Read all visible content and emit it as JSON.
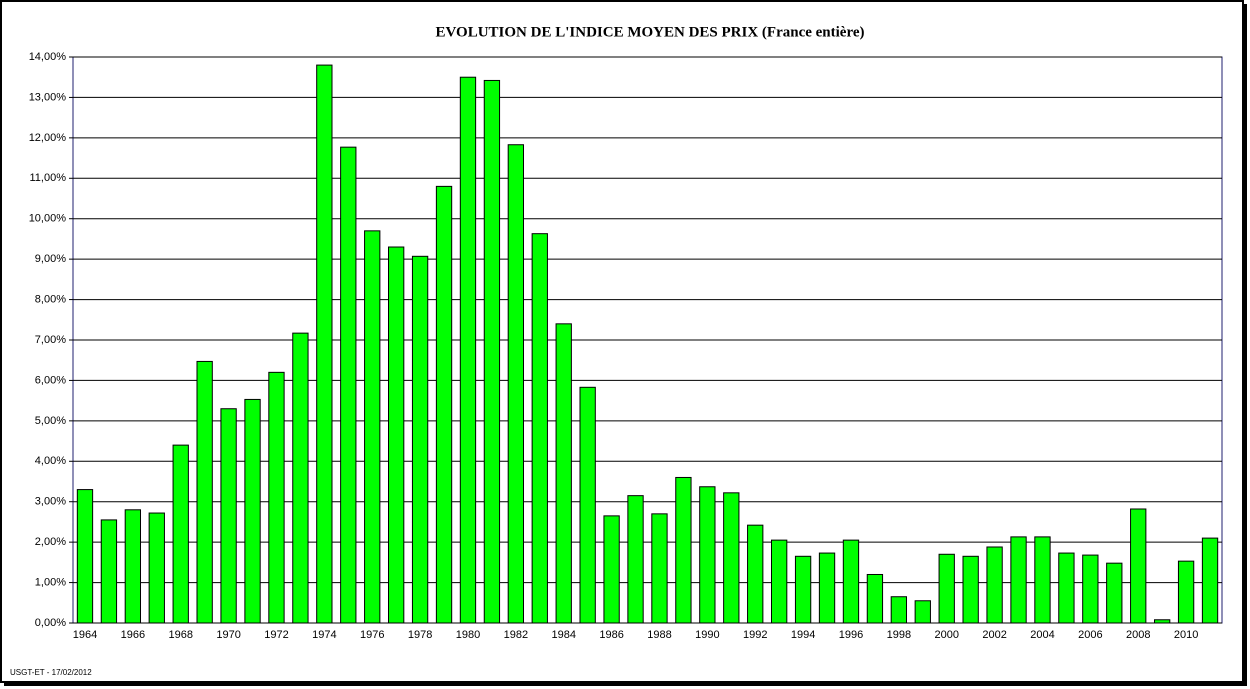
{
  "chart_data": {
    "type": "bar",
    "title": "EVOLUTION DE L'INDICE MOYEN DES PRIX (France entière)",
    "footnote": "USGT-ET - 17/02/2012",
    "categories": [
      "1964",
      null,
      "1966",
      null,
      "1968",
      null,
      "1970",
      null,
      "1972",
      null,
      "1974",
      null,
      "1976",
      null,
      "1978",
      null,
      "1980",
      null,
      "1982",
      null,
      "1984",
      null,
      "1986",
      null,
      "1988",
      null,
      "1990",
      null,
      "1992",
      null,
      "1994",
      null,
      "1996",
      null,
      "1998",
      null,
      "2000",
      null,
      "2002",
      null,
      "2004",
      null,
      "2006",
      null,
      "2008",
      null,
      "2010",
      null
    ],
    "values": [
      3.3,
      2.55,
      2.8,
      2.72,
      4.4,
      6.47,
      5.3,
      5.53,
      6.2,
      7.17,
      13.8,
      11.77,
      9.7,
      9.3,
      9.07,
      10.8,
      13.5,
      13.42,
      11.83,
      9.63,
      7.4,
      5.83,
      2.65,
      3.15,
      2.7,
      3.6,
      3.37,
      3.22,
      2.42,
      2.05,
      1.65,
      1.73,
      2.05,
      1.2,
      0.65,
      0.55,
      1.7,
      1.65,
      1.88,
      2.13,
      2.13,
      1.73,
      1.68,
      1.48,
      2.82,
      0.08,
      1.53,
      2.1
    ],
    "color": "#00ff00",
    "ylim": [
      0,
      14
    ],
    "yticks": [
      {
        "value": 0,
        "label": "0,00%"
      },
      {
        "value": 1,
        "label": "1,00%"
      },
      {
        "value": 2,
        "label": "2,00%"
      },
      {
        "value": 3,
        "label": "3,00%"
      },
      {
        "value": 4,
        "label": "4,00%"
      },
      {
        "value": 5,
        "label": "5,00%"
      },
      {
        "value": 6,
        "label": "6,00%"
      },
      {
        "value": 7,
        "label": "7,00%"
      },
      {
        "value": 8,
        "label": "8,00%"
      },
      {
        "value": 9,
        "label": "9,00%"
      },
      {
        "value": 10,
        "label": "10,00%"
      },
      {
        "value": 11,
        "label": "11,00%"
      },
      {
        "value": 12,
        "label": "12,00%"
      },
      {
        "value": 13,
        "label": "13,00%"
      },
      {
        "value": 14,
        "label": "14,00%"
      }
    ],
    "grid": true
  }
}
